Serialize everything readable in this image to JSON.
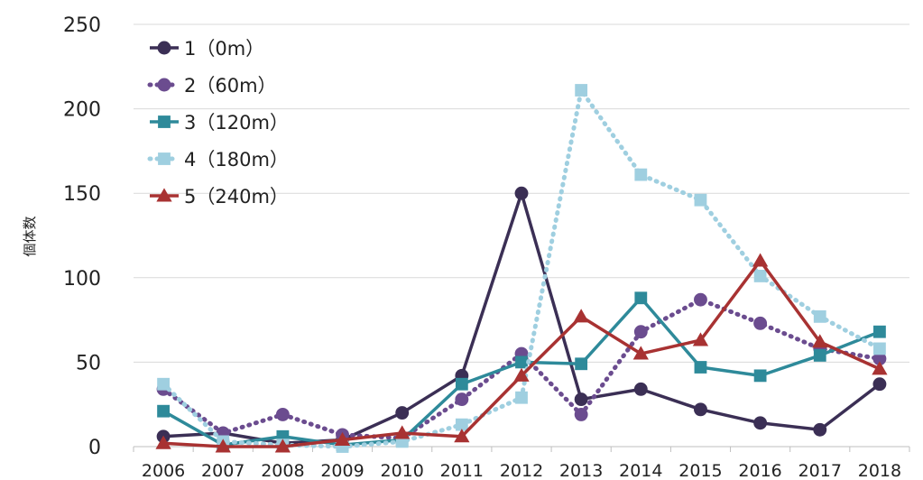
{
  "chart_data": {
    "type": "line",
    "title": "",
    "xlabel": "",
    "ylabel": "個体数",
    "ylim": [
      0,
      250
    ],
    "yticks": [
      0,
      50,
      100,
      150,
      200,
      250
    ],
    "grid": true,
    "legend_position": "top-left",
    "categories": [
      "2006",
      "2007",
      "2008",
      "2009",
      "2010",
      "2011",
      "2012",
      "2013",
      "2014",
      "2015",
      "2016",
      "2017",
      "2018"
    ],
    "series": [
      {
        "name": "1（0m）",
        "color": "#3b2f55",
        "marker": "circle",
        "dash": "solid",
        "values": [
          6,
          8,
          2,
          4,
          20,
          42,
          150,
          28,
          34,
          22,
          14,
          10,
          37
        ]
      },
      {
        "name": "2（60m）",
        "color": "#6b4c8f",
        "marker": "circle",
        "dash": "dotted",
        "values": [
          34,
          8,
          19,
          7,
          5,
          28,
          55,
          19,
          68,
          87,
          73,
          58,
          52
        ]
      },
      {
        "name": "3（120m）",
        "color": "#2e8a9a",
        "marker": "square",
        "dash": "solid",
        "values": [
          21,
          1,
          6,
          1,
          4,
          37,
          50,
          49,
          88,
          47,
          42,
          54,
          68
        ]
      },
      {
        "name": "4（180m）",
        "color": "#9fcfe0",
        "marker": "square",
        "dash": "dotted",
        "values": [
          37,
          3,
          1,
          0,
          3,
          13,
          29,
          211,
          161,
          146,
          101,
          77,
          58
        ]
      },
      {
        "name": "5（240m）",
        "color": "#a83232",
        "marker": "triangle",
        "dash": "solid",
        "values": [
          2,
          0,
          0,
          4,
          8,
          6,
          42,
          77,
          55,
          63,
          110,
          62,
          46
        ]
      }
    ]
  }
}
